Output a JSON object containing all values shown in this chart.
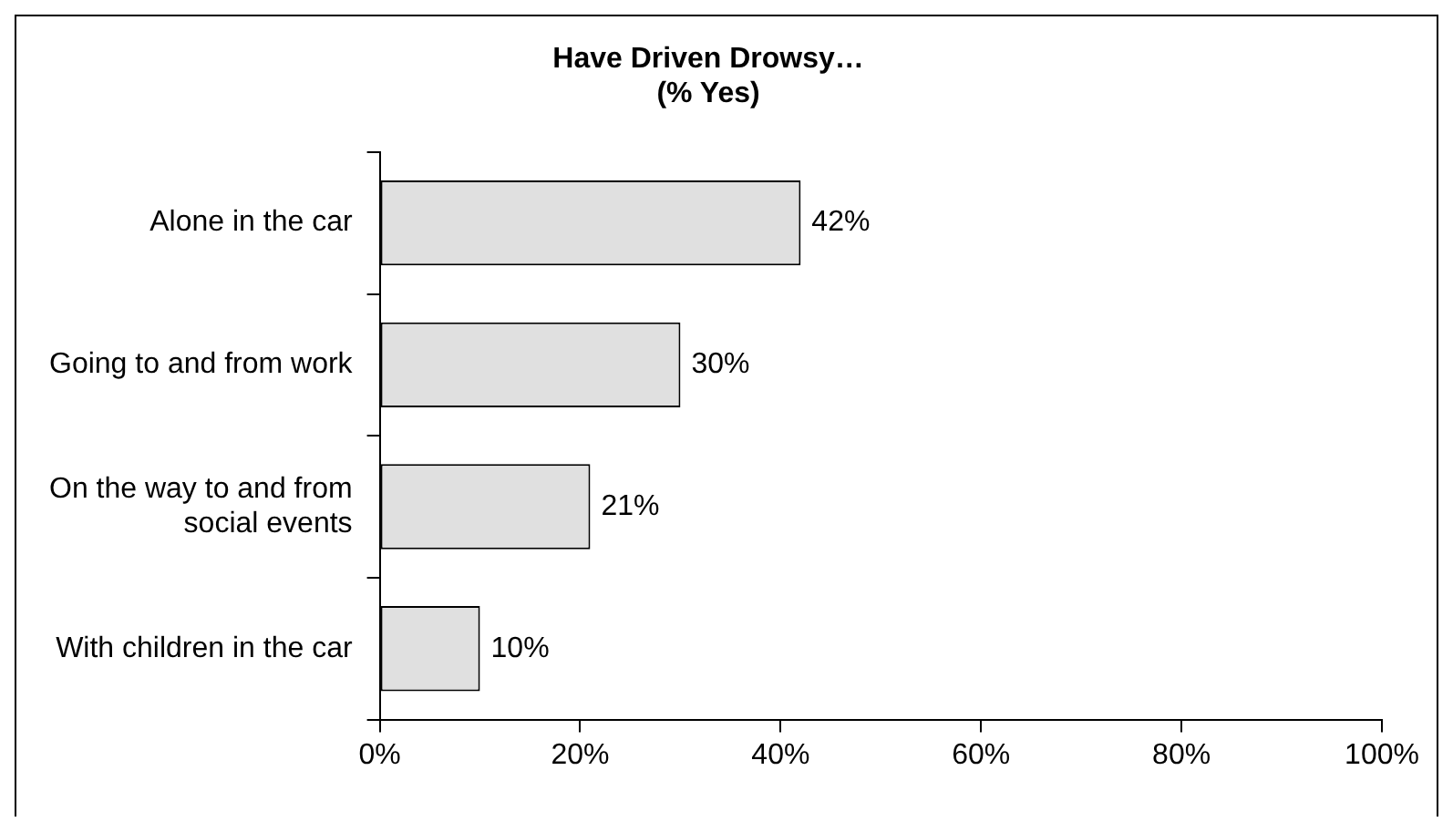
{
  "chart_data": {
    "type": "bar",
    "orientation": "horizontal",
    "title": [
      "Have Driven Drowsy…",
      "(% Yes)"
    ],
    "categories": [
      "Alone in the car",
      "Going to and from work",
      "On the way to and from social events",
      "With children in the car"
    ],
    "values": [
      42,
      30,
      21,
      10
    ],
    "color": "#e0e0e0",
    "value_labels": [
      "42%",
      "30%",
      "21%",
      "10%"
    ],
    "xlim": [
      0,
      100
    ],
    "xticks": [
      {
        "value": 0,
        "label": "0%"
      },
      {
        "value": 20,
        "label": "20%"
      },
      {
        "value": 40,
        "label": "40%"
      },
      {
        "value": 60,
        "label": "60%"
      },
      {
        "value": 80,
        "label": "80%"
      },
      {
        "value": 100,
        "label": "100%"
      }
    ],
    "grid": false,
    "legend": false
  }
}
